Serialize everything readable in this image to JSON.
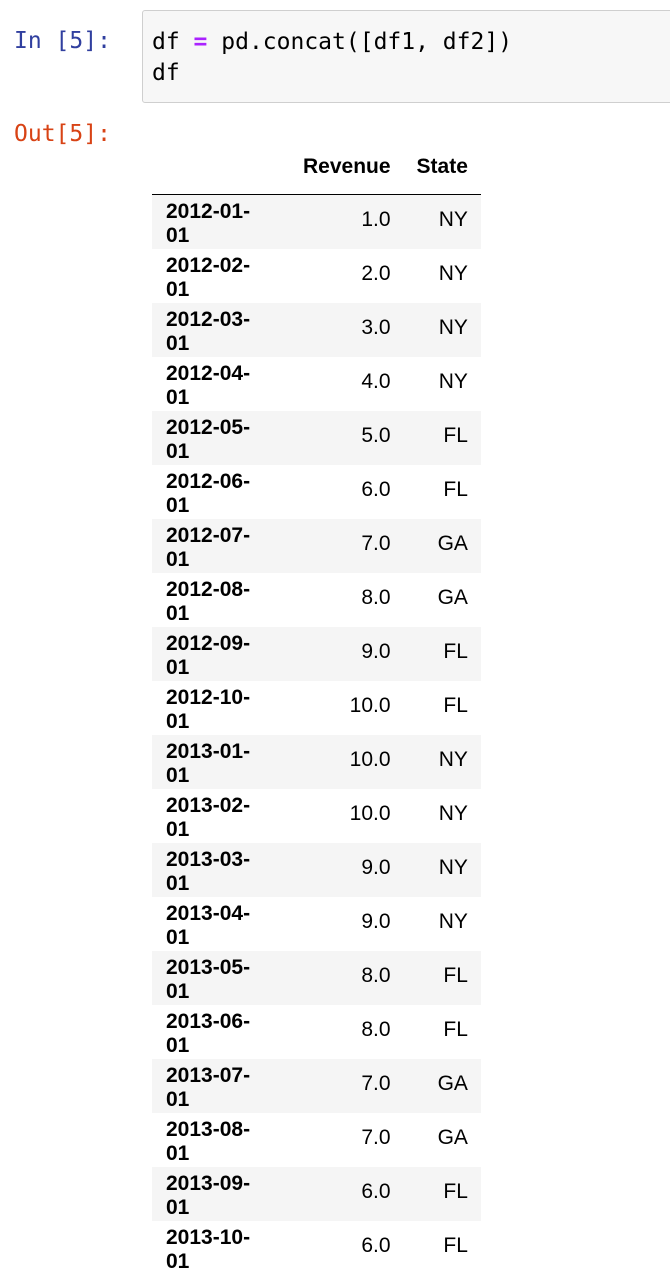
{
  "cell_in": {
    "prompt": "In [5]:",
    "code_lines": [
      {
        "pre": "df ",
        "op": "=",
        "post": " pd.concat([df1, df2])"
      },
      {
        "pre": "df",
        "op": "",
        "post": ""
      }
    ]
  },
  "cell_out": {
    "prompt": "Out[5]:",
    "columns": [
      "Revenue",
      "State"
    ],
    "rows": [
      {
        "index": "2012-01-01",
        "revenue": "1.0",
        "state": "NY"
      },
      {
        "index": "2012-02-01",
        "revenue": "2.0",
        "state": "NY"
      },
      {
        "index": "2012-03-01",
        "revenue": "3.0",
        "state": "NY"
      },
      {
        "index": "2012-04-01",
        "revenue": "4.0",
        "state": "NY"
      },
      {
        "index": "2012-05-01",
        "revenue": "5.0",
        "state": "FL"
      },
      {
        "index": "2012-06-01",
        "revenue": "6.0",
        "state": "FL"
      },
      {
        "index": "2012-07-01",
        "revenue": "7.0",
        "state": "GA"
      },
      {
        "index": "2012-08-01",
        "revenue": "8.0",
        "state": "GA"
      },
      {
        "index": "2012-09-01",
        "revenue": "9.0",
        "state": "FL"
      },
      {
        "index": "2012-10-01",
        "revenue": "10.0",
        "state": "FL"
      },
      {
        "index": "2013-01-01",
        "revenue": "10.0",
        "state": "NY"
      },
      {
        "index": "2013-02-01",
        "revenue": "10.0",
        "state": "NY"
      },
      {
        "index": "2013-03-01",
        "revenue": "9.0",
        "state": "NY"
      },
      {
        "index": "2013-04-01",
        "revenue": "9.0",
        "state": "NY"
      },
      {
        "index": "2013-05-01",
        "revenue": "8.0",
        "state": "FL"
      },
      {
        "index": "2013-06-01",
        "revenue": "8.0",
        "state": "FL"
      },
      {
        "index": "2013-07-01",
        "revenue": "7.0",
        "state": "GA"
      },
      {
        "index": "2013-08-01",
        "revenue": "7.0",
        "state": "GA"
      },
      {
        "index": "2013-09-01",
        "revenue": "6.0",
        "state": "FL"
      },
      {
        "index": "2013-10-01",
        "revenue": "6.0",
        "state": "FL"
      }
    ]
  },
  "colors": {
    "prompt_in": "#303f9f",
    "prompt_out": "#d84315",
    "operator": "#aa22ff",
    "cell_background": "#f7f7f7",
    "row_stripe": "#f5f5f5"
  }
}
